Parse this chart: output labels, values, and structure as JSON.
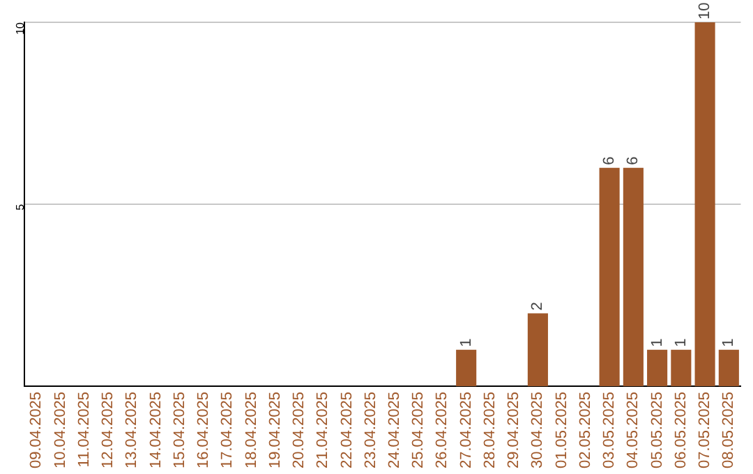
{
  "chart_data": {
    "type": "bar",
    "categories": [
      "09.04.2025",
      "10.04.2025",
      "11.04.2025",
      "12.04.2025",
      "13.04.2025",
      "14.04.2025",
      "15.04.2025",
      "16.04.2025",
      "17.04.2025",
      "18.04.2025",
      "19.04.2025",
      "20.04.2025",
      "21.04.2025",
      "22.04.2025",
      "23.04.2025",
      "24.04.2025",
      "25.04.2025",
      "26.04.2025",
      "27.04.2025",
      "28.04.2025",
      "29.04.2025",
      "30.04.2025",
      "01.05.2025",
      "02.05.2025",
      "03.05.2025",
      "04.05.2025",
      "05.05.2025",
      "06.05.2025",
      "07.05.2025",
      "08.05.2025"
    ],
    "values": [
      0,
      0,
      0,
      0,
      0,
      0,
      0,
      0,
      0,
      0,
      0,
      0,
      0,
      0,
      0,
      0,
      0,
      0,
      1,
      0,
      0,
      2,
      0,
      0,
      6,
      6,
      1,
      1,
      10,
      1
    ],
    "value_labels": [
      null,
      null,
      null,
      null,
      null,
      null,
      null,
      null,
      null,
      null,
      null,
      null,
      null,
      null,
      null,
      null,
      null,
      null,
      "1",
      null,
      null,
      "2",
      null,
      null,
      "6",
      "6",
      "1",
      "1",
      "10",
      "1"
    ],
    "color": "#a0582a",
    "ylim": [
      0,
      10
    ],
    "yticks": [
      5,
      10
    ],
    "grid": "y",
    "legend": false
  }
}
